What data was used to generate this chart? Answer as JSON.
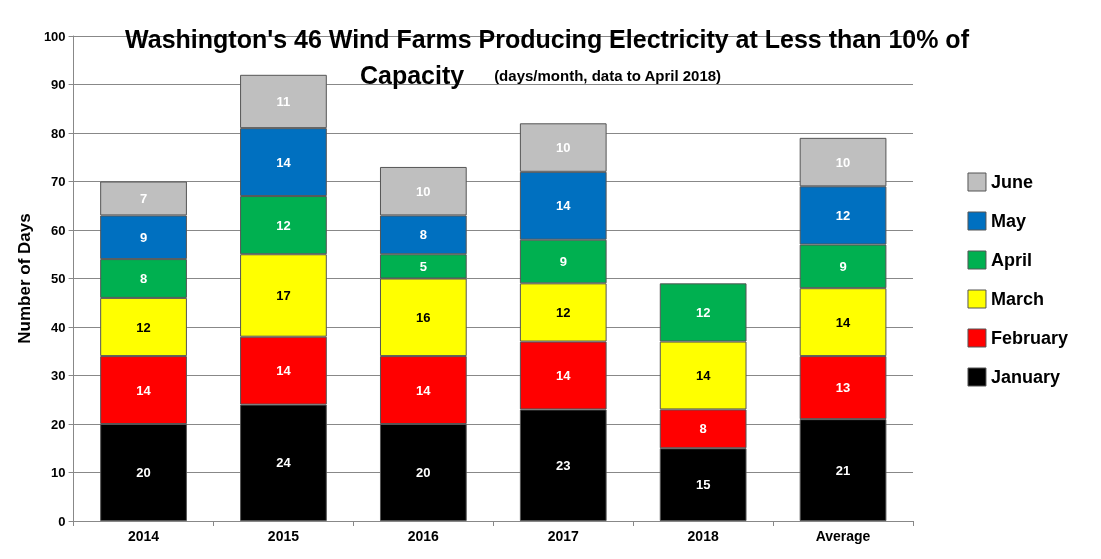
{
  "chart_data": {
    "type": "bar",
    "title": "Washington's 46 Wind Farms Producing Electricity at Less than 10% of Capacity",
    "subtitle": "(days/month, data to April 2018)",
    "ylabel": "Number of Days",
    "categories": [
      "2014",
      "2015",
      "2016",
      "2017",
      "2018",
      "Average"
    ],
    "stacked": true,
    "data_labels": true,
    "grid": "y",
    "legend": "right",
    "ylim": [
      0,
      100
    ],
    "yticks": [
      0,
      10,
      20,
      30,
      40,
      50,
      60,
      70,
      80,
      90,
      100
    ],
    "series": [
      {
        "name": "January",
        "color": "#000000",
        "values": [
          20,
          24,
          20,
          23,
          15,
          21
        ]
      },
      {
        "name": "February",
        "color": "#ff0000",
        "values": [
          14,
          14,
          14,
          14,
          8,
          13
        ]
      },
      {
        "name": "March",
        "color": "#ffff00",
        "values": [
          12,
          17,
          16,
          12,
          14,
          14
        ]
      },
      {
        "name": "April",
        "color": "#00b050",
        "values": [
          8,
          12,
          5,
          9,
          12,
          9
        ]
      },
      {
        "name": "May",
        "color": "#0070c0",
        "values": [
          9,
          14,
          8,
          14,
          null,
          12
        ]
      },
      {
        "name": "June",
        "color": "#bfbfbf",
        "values": [
          7,
          11,
          10,
          10,
          null,
          10
        ]
      }
    ]
  }
}
